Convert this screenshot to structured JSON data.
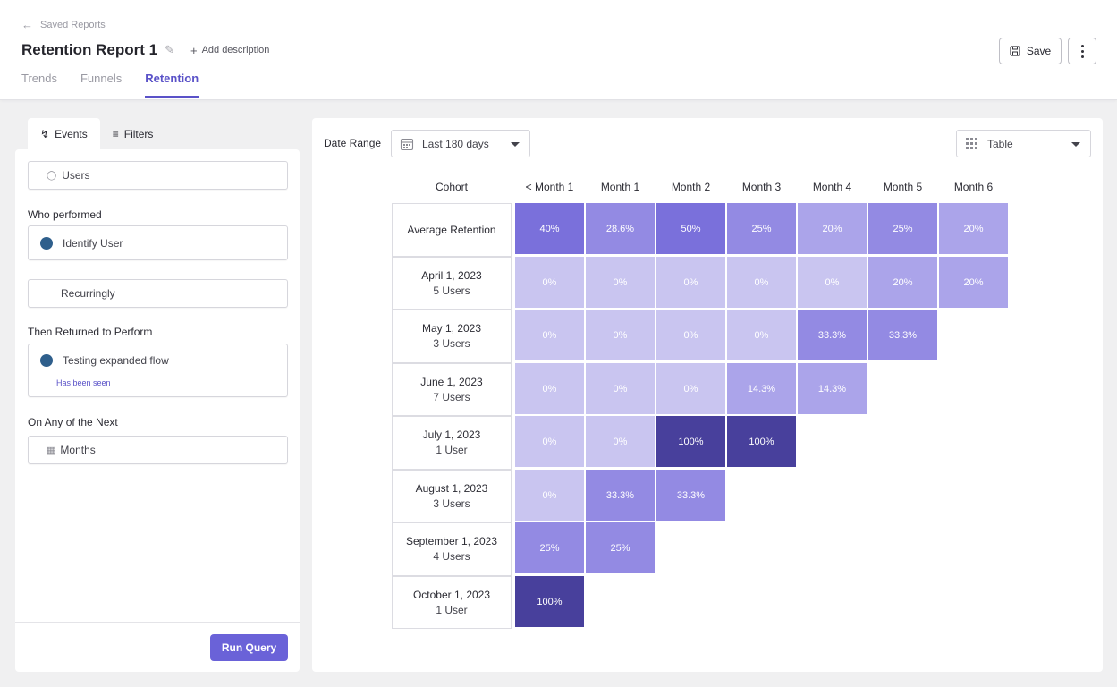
{
  "header": {
    "back_label": "Saved Reports",
    "title": "Retention Report 1",
    "add_description": "Add description",
    "tabs": [
      "Trends",
      "Funnels",
      "Retention"
    ],
    "active_tab": "Retention",
    "save_label": "Save"
  },
  "left": {
    "tabs": [
      {
        "label": "Events",
        "icon": "bolt-icon"
      },
      {
        "label": "Filters",
        "icon": "sliders-icon"
      }
    ],
    "entity": "Users",
    "who_performed_label": "Who performed",
    "who_performed_event": "Identify User",
    "frequency": "Recurringly",
    "then_returned_label": "Then Returned to Perform",
    "returned_event": "Testing expanded flow",
    "returned_hint": "Has been seen",
    "on_any_label": "On Any of the Next",
    "period": "Months",
    "run_label": "Run Query",
    "event_dot_color": "#2f5f8c"
  },
  "main": {
    "date_range_label": "Date Range",
    "date_range_value": "Last 180 days",
    "view_value": "Table",
    "columns": [
      "Cohort",
      "< Month 1",
      "Month 1",
      "Month 2",
      "Month 3",
      "Month 4",
      "Month 5",
      "Month 6"
    ],
    "rows": [
      {
        "label": "Average Retention",
        "users": "",
        "values": [
          "40%",
          "28.6%",
          "50%",
          "25%",
          "20%",
          "25%",
          "20%"
        ]
      },
      {
        "label": "April 1, 2023",
        "users": "5 Users",
        "values": [
          "0%",
          "0%",
          "0%",
          "0%",
          "0%",
          "20%",
          "20%"
        ]
      },
      {
        "label": "May 1, 2023",
        "users": "3 Users",
        "values": [
          "0%",
          "0%",
          "0%",
          "0%",
          "33.3%",
          "33.3%"
        ]
      },
      {
        "label": "June 1, 2023",
        "users": "7 Users",
        "values": [
          "0%",
          "0%",
          "0%",
          "14.3%",
          "14.3%"
        ]
      },
      {
        "label": "July 1, 2023",
        "users": "1 User",
        "values": [
          "0%",
          "0%",
          "100%",
          "100%"
        ]
      },
      {
        "label": "August 1, 2023",
        "users": "3 Users",
        "values": [
          "0%",
          "33.3%",
          "33.3%"
        ]
      },
      {
        "label": "September 1, 2023",
        "users": "4 Users",
        "values": [
          "25%",
          "25%"
        ]
      },
      {
        "label": "October 1, 2023",
        "users": "1 User",
        "values": [
          "100%"
        ]
      }
    ],
    "heat_colors": {
      "zero": "#c9c5f0",
      "low": "#aba4ea",
      "mid": "#938ae3",
      "high": "#7a70db",
      "full": "#48409c"
    }
  }
}
